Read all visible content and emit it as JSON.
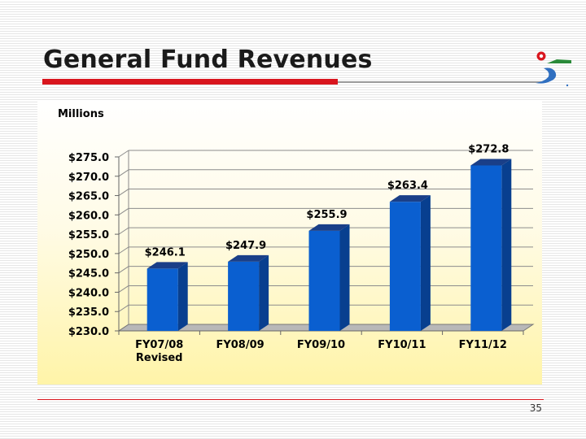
{
  "slide": {
    "title": "General Fund Revenues",
    "page_number": "35"
  },
  "colors": {
    "accent_red": "#d9161e",
    "bar_front": "#0a5fd0",
    "bar_side": "#083f8f",
    "bar_top": "#1a3f88"
  },
  "logo": {
    "icon": "city-logo-icon"
  },
  "chart_data": {
    "type": "bar",
    "title": "",
    "ylabel": "Millions",
    "xlabel": "",
    "categories": [
      "FY07/08\nRevised",
      "FY08/09",
      "FY09/10",
      "FY10/11",
      "FY11/12"
    ],
    "values": [
      246.1,
      247.9,
      255.9,
      263.4,
      272.8
    ],
    "data_labels": [
      "$246.1",
      "$247.9",
      "$255.9",
      "$263.4",
      "$272.8"
    ],
    "ylim": [
      230.0,
      275.0
    ],
    "yticks": [
      230.0,
      235.0,
      240.0,
      245.0,
      250.0,
      255.0,
      260.0,
      265.0,
      270.0,
      275.0
    ],
    "ytick_labels": [
      "$230.0",
      "$235.0",
      "$240.0",
      "$245.0",
      "$250.0",
      "$255.0",
      "$260.0",
      "$265.0",
      "$270.0",
      "$275.0"
    ],
    "grid": true,
    "legend": "none",
    "style": "3d"
  }
}
